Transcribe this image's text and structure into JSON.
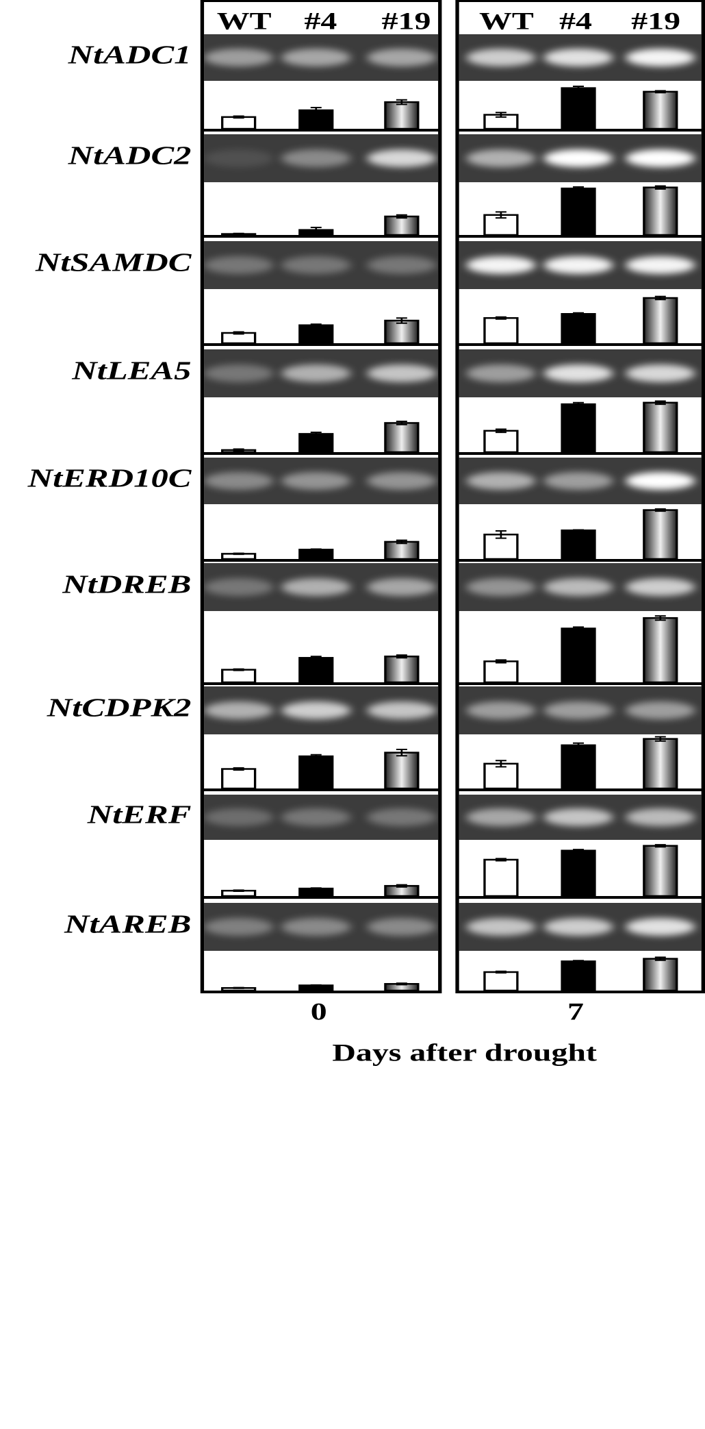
{
  "chart_data": {
    "type": "bar",
    "categories": [
      "WT",
      "#4",
      "#19"
    ],
    "panels": [
      "0",
      "7"
    ],
    "x_label": "Days after drought",
    "colors": [
      "#ffffff",
      "#000000",
      "#888888"
    ],
    "ylim": [
      0,
      1
    ],
    "genes": [
      {
        "name": "NtADC1",
        "gel": [
          [
            0.5,
            0.55,
            0.55
          ],
          [
            0.75,
            0.85,
            0.95
          ]
        ],
        "values": [
          [
            0.26,
            0.41,
            0.59
          ],
          [
            0.31,
            0.9,
            0.82
          ]
        ],
        "errors": [
          [
            0.02,
            0.06,
            0.05
          ],
          [
            0.05,
            0.04,
            0.02
          ]
        ]
      },
      {
        "name": "NtADC2",
        "gel": [
          [
            0.1,
            0.4,
            0.8
          ],
          [
            0.6,
            1,
            1
          ]
        ],
        "values": [
          [
            0.02,
            0.1,
            0.37
          ],
          [
            0.4,
            0.93,
            0.95
          ]
        ],
        "errors": [
          [
            0.01,
            0.05,
            0.03
          ],
          [
            0.06,
            0.03,
            0.03
          ]
        ]
      },
      {
        "name": "NtSAMDC",
        "gel": [
          [
            0.3,
            0.3,
            0.3
          ],
          [
            0.95,
            0.95,
            0.95
          ]
        ],
        "values": [
          [
            0.2,
            0.35,
            0.44
          ],
          [
            0.49,
            0.57,
            0.88
          ]
        ],
        "errors": [
          [
            0.02,
            0.02,
            0.05
          ],
          [
            0.02,
            0.02,
            0.03
          ]
        ]
      },
      {
        "name": "NtLEA5",
        "gel": [
          [
            0.3,
            0.6,
            0.7
          ],
          [
            0.5,
            0.85,
            0.8
          ]
        ],
        "values": [
          [
            0.04,
            0.35,
            0.56
          ],
          [
            0.41,
            0.92,
            0.95
          ]
        ],
        "errors": [
          [
            0.02,
            0.03,
            0.03
          ],
          [
            0.03,
            0.03,
            0.03
          ]
        ]
      },
      {
        "name": "NtERD10C",
        "gel": [
          [
            0.4,
            0.45,
            0.45
          ],
          [
            0.6,
            0.5,
            1
          ]
        ],
        "values": [
          [
            0.1,
            0.18,
            0.33
          ],
          [
            0.47,
            0.55,
            0.94
          ]
        ],
        "errors": [
          [
            0.01,
            0.01,
            0.03
          ],
          [
            0.07,
            0.01,
            0.02
          ]
        ]
      },
      {
        "name": "NtDREB",
        "gel": [
          [
            0.3,
            0.6,
            0.55
          ],
          [
            0.45,
            0.65,
            0.75
          ]
        ],
        "values": [
          [
            0.18,
            0.35,
            0.37
          ],
          [
            0.3,
            0.77,
            0.92
          ]
        ],
        "errors": [
          [
            0.01,
            0.02,
            0.02
          ],
          [
            0.02,
            0.02,
            0.03
          ]
        ]
      },
      {
        "name": "NtCDPK2",
        "gel": [
          [
            0.6,
            0.75,
            0.7
          ],
          [
            0.5,
            0.5,
            0.5
          ]
        ],
        "values": [
          [
            0.37,
            0.61,
            0.68
          ],
          [
            0.47,
            0.82,
            0.94
          ]
        ],
        "errors": [
          [
            0.02,
            0.03,
            0.06
          ],
          [
            0.06,
            0.04,
            0.04
          ]
        ]
      },
      {
        "name": "NtERF",
        "gel": [
          [
            0.25,
            0.3,
            0.3
          ],
          [
            0.55,
            0.7,
            0.65
          ]
        ],
        "values": [
          [
            0.1,
            0.14,
            0.19
          ],
          [
            0.68,
            0.85,
            0.94
          ]
        ],
        "errors": [
          [
            0.01,
            0.01,
            0.02
          ],
          [
            0.02,
            0.02,
            0.02
          ]
        ]
      },
      {
        "name": "NtAREB",
        "gel": [
          [
            0.35,
            0.4,
            0.4
          ],
          [
            0.7,
            0.75,
            0.85
          ]
        ],
        "values": [
          [
            0.07,
            0.14,
            0.18
          ],
          [
            0.5,
            0.79,
            0.86
          ]
        ],
        "errors": [
          [
            0.01,
            0.01,
            0.02
          ],
          [
            0.02,
            0.02,
            0.04
          ]
        ]
      }
    ]
  }
}
